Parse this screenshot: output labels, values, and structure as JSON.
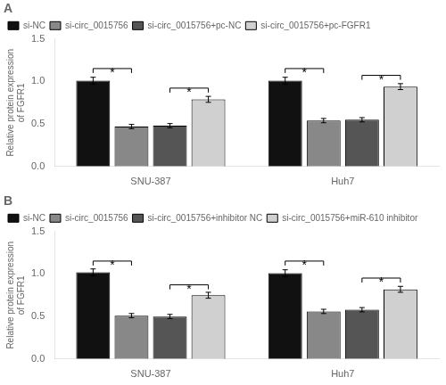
{
  "chart_data": [
    {
      "type": "bar",
      "title": "A",
      "categories": [
        "SNU-387",
        "Huh7"
      ],
      "series": [
        {
          "name": "si-NC",
          "color": "#111111",
          "values": [
            1.01,
            1.01
          ],
          "errors": [
            0.04,
            0.04
          ]
        },
        {
          "name": "si-circ_0015756",
          "color": "#888888",
          "values": [
            0.47,
            0.54
          ],
          "errors": [
            0.025,
            0.025
          ]
        },
        {
          "name": "si-circ_0015756+pc-NC",
          "color": "#555555",
          "values": [
            0.48,
            0.55
          ],
          "errors": [
            0.025,
            0.025
          ]
        },
        {
          "name": "si-circ_0015756+pc-FGFR1",
          "color": "#d0d0d0",
          "values": [
            0.79,
            0.94
          ],
          "errors": [
            0.035,
            0.035
          ]
        }
      ],
      "ylabel": "Relative protein expression\nof FGFR1",
      "ylim": [
        0,
        1.5
      ],
      "yticks": [
        {
          "value": 0,
          "label": "0.0"
        },
        0.5,
        {
          "value": 1,
          "label": "1.0"
        },
        1.5
      ],
      "grid": false,
      "legend": "upper left",
      "annotations": [
        {
          "text": "*",
          "category": "SNU-387",
          "series": [
            "si-NC",
            "si-circ_0015756"
          ],
          "y": 1.1
        },
        {
          "text": "*",
          "category": "SNU-387",
          "series": [
            "si-circ_0015756+pc-NC",
            "si-circ_0015756+pc-FGFR1"
          ],
          "y": 0.87
        },
        {
          "text": "*",
          "category": "Huh7",
          "series": [
            "si-NC",
            "si-circ_0015756"
          ],
          "y": 1.1
        },
        {
          "text": "*",
          "category": "Huh7",
          "series": [
            "si-circ_0015756+pc-NC",
            "si-circ_0015756+pc-FGFR1"
          ],
          "y": 1.02
        }
      ]
    },
    {
      "type": "bar",
      "title": "B",
      "categories": [
        "SNU-387",
        "Huh7"
      ],
      "series": [
        {
          "name": "si-NC",
          "color": "#111111",
          "values": [
            1.02,
            1.01
          ],
          "errors": [
            0.04,
            0.04
          ]
        },
        {
          "name": "si-circ_0015756",
          "color": "#888888",
          "values": [
            0.51,
            0.56
          ],
          "errors": [
            0.025,
            0.025
          ]
        },
        {
          "name": "si-circ_0015756+inhibitor NC",
          "color": "#555555",
          "values": [
            0.5,
            0.58
          ],
          "errors": [
            0.025,
            0.025
          ]
        },
        {
          "name": "si-circ_0015756+miR-610 inhibitor",
          "color": "#d0d0d0",
          "values": [
            0.75,
            0.82
          ],
          "errors": [
            0.035,
            0.035
          ]
        }
      ],
      "ylabel": "Relative protein expression\nof FGFR1",
      "ylim": [
        0,
        1.5
      ],
      "yticks": [
        {
          "value": 0,
          "label": "0.0"
        },
        0.5,
        {
          "value": 1,
          "label": "1.0"
        },
        1.5
      ],
      "grid": false,
      "legend": "upper left",
      "annotations": [
        {
          "text": "*",
          "category": "SNU-387",
          "series": [
            "si-NC",
            "si-circ_0015756"
          ],
          "y": 1.1
        },
        {
          "text": "*",
          "category": "SNU-387",
          "series": [
            "si-circ_0015756+inhibitor NC",
            "si-circ_0015756+miR-610 inhibitor"
          ],
          "y": 0.82
        },
        {
          "text": "*",
          "category": "Huh7",
          "series": [
            "si-NC",
            "si-circ_0015756"
          ],
          "y": 1.1
        },
        {
          "text": "*",
          "category": "Huh7",
          "series": [
            "si-circ_0015756+inhibitor NC",
            "si-circ_0015756+miR-610 inhibitor"
          ],
          "y": 0.9
        }
      ]
    }
  ]
}
